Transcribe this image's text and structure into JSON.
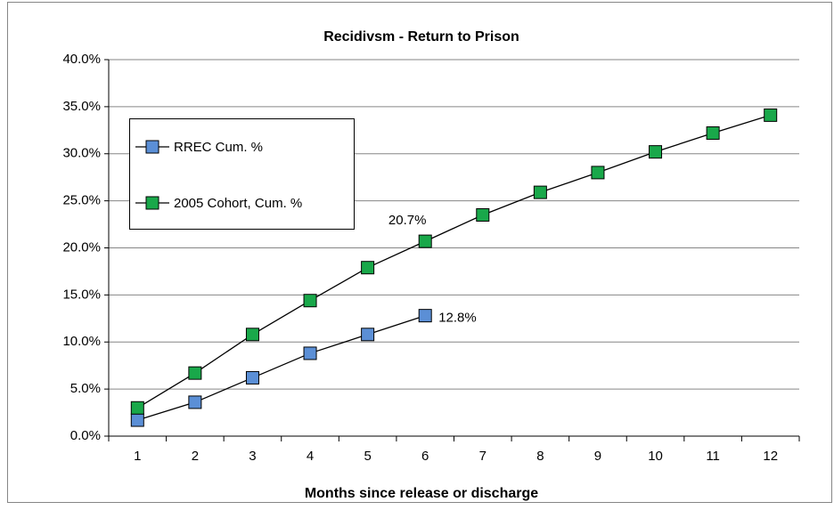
{
  "chart_data": {
    "type": "line",
    "title": "Recidivsm - Return to Prison",
    "x_label": "Months since release or discharge",
    "categories": [
      1,
      2,
      3,
      4,
      5,
      6,
      7,
      8,
      9,
      10,
      11,
      12
    ],
    "series": [
      {
        "name": "RREC Cum. %",
        "color": "#5b8fd6",
        "values": [
          1.7,
          3.6,
          6.2,
          8.8,
          10.8,
          12.8,
          null,
          null,
          null,
          null,
          null,
          null
        ],
        "value_labels": [
          null,
          null,
          null,
          null,
          null,
          "12.8%",
          null,
          null,
          null,
          null,
          null,
          null
        ]
      },
      {
        "name": "2005 Cohort, Cum. %",
        "color": "#19a84a",
        "values": [
          3.0,
          6.7,
          10.8,
          14.4,
          17.9,
          20.7,
          23.5,
          25.9,
          28.0,
          30.2,
          32.2,
          34.1
        ],
        "value_labels": [
          null,
          null,
          null,
          null,
          null,
          "20.7%",
          null,
          null,
          null,
          null,
          null,
          null
        ]
      }
    ],
    "ylim": [
      0,
      40
    ],
    "yticks": [
      {
        "value": 0,
        "label": "0.0%"
      },
      {
        "value": 5,
        "label": "5.0%"
      },
      {
        "value": 10,
        "label": "10.0%"
      },
      {
        "value": 15,
        "label": "15.0%"
      },
      {
        "value": 20,
        "label": "20.0%"
      },
      {
        "value": 25,
        "label": "25.0%"
      },
      {
        "value": 30,
        "label": "30.0%"
      },
      {
        "value": 35,
        "label": "35.0%"
      },
      {
        "value": 40,
        "label": "40.0%"
      }
    ],
    "grid": true,
    "legend": "left"
  }
}
